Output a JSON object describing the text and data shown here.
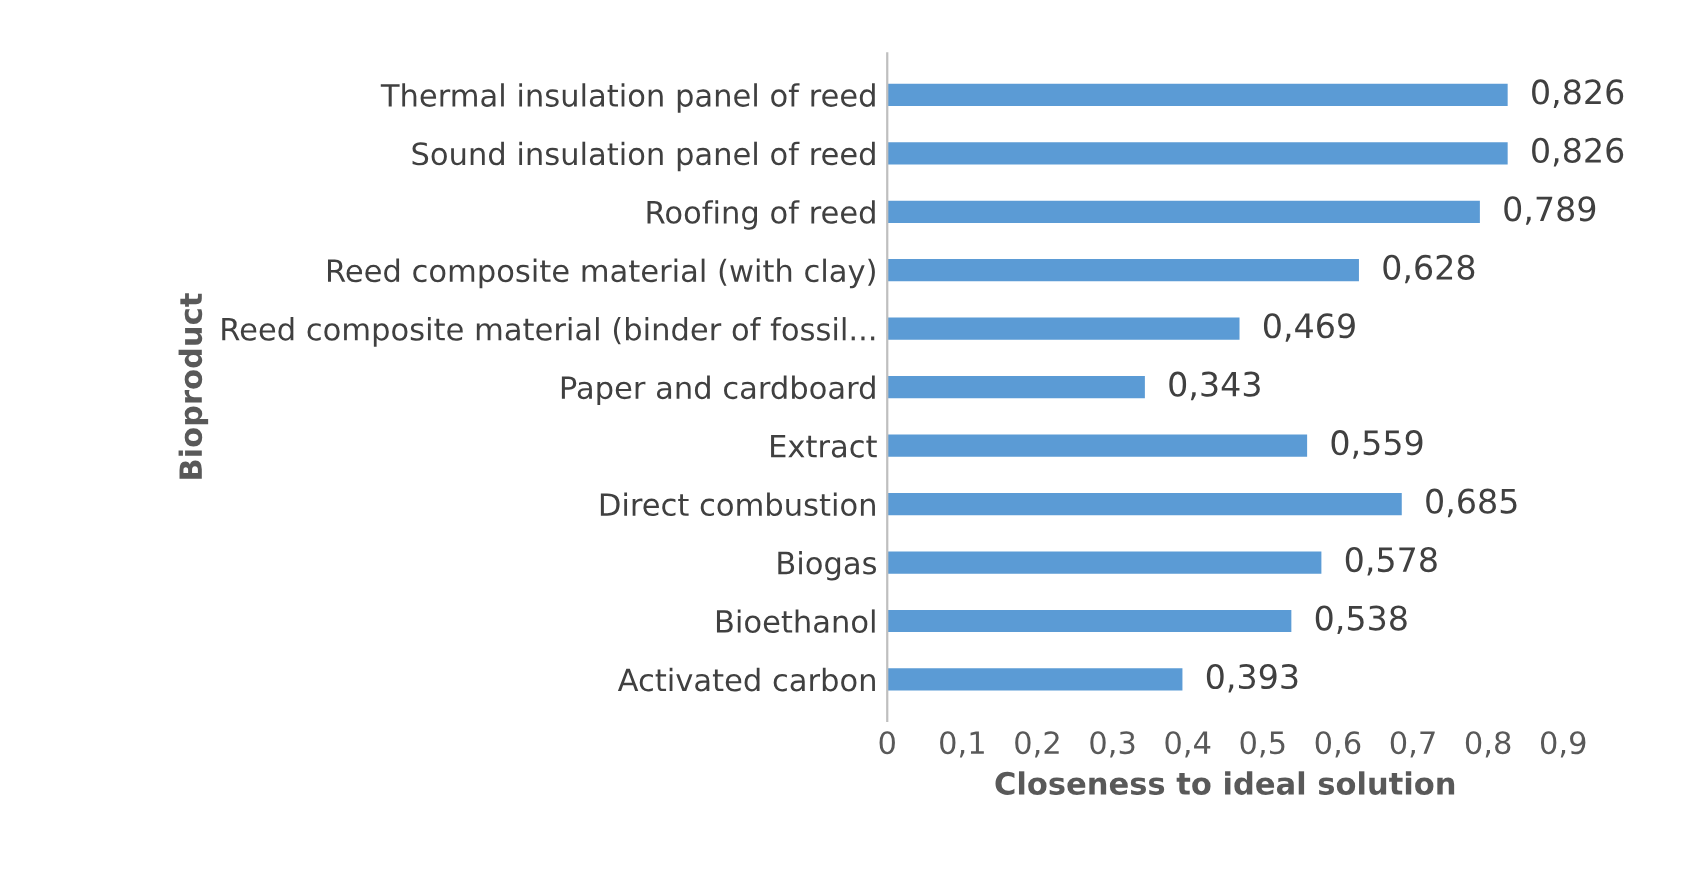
{
  "chart_data": {
    "type": "bar",
    "orientation": "horizontal",
    "xlabel": "Closeness to ideal solution",
    "ylabel": "Bioproduct",
    "categories": [
      "Thermal insulation panel of reed",
      "Sound insulation panel of reed",
      "Roofing of reed",
      "Reed composite material (with clay)",
      "Reed composite material (binder of fossil...",
      "Paper and cardboard",
      "Extract",
      "Direct combustion",
      "Biogas",
      "Bioethanol",
      "Activated carbon"
    ],
    "values": [
      0.826,
      0.826,
      0.789,
      0.628,
      0.469,
      0.343,
      0.559,
      0.685,
      0.578,
      0.538,
      0.393
    ],
    "value_labels": [
      "0,826",
      "0,826",
      "0,789",
      "0,628",
      "0,469",
      "0,343",
      "0,559",
      "0,685",
      "0,578",
      "0,538",
      "0,393"
    ],
    "color": "#5b9bd5",
    "xlim": [
      0,
      0.9
    ],
    "xticks": [
      0,
      {
        "value": 0.1,
        "label": "0,1"
      },
      {
        "value": 0.2,
        "label": "0,2"
      },
      {
        "value": 0.3,
        "label": "0,3"
      },
      {
        "value": 0.4,
        "label": "0,4"
      },
      {
        "value": 0.5,
        "label": "0,5"
      },
      {
        "value": 0.6,
        "label": "0,6"
      },
      {
        "value": 0.7,
        "label": "0,7"
      },
      {
        "value": 0.8,
        "label": "0,8"
      },
      {
        "value": 0.9,
        "label": "0,9"
      }
    ],
    "grid": false,
    "legend": false
  }
}
